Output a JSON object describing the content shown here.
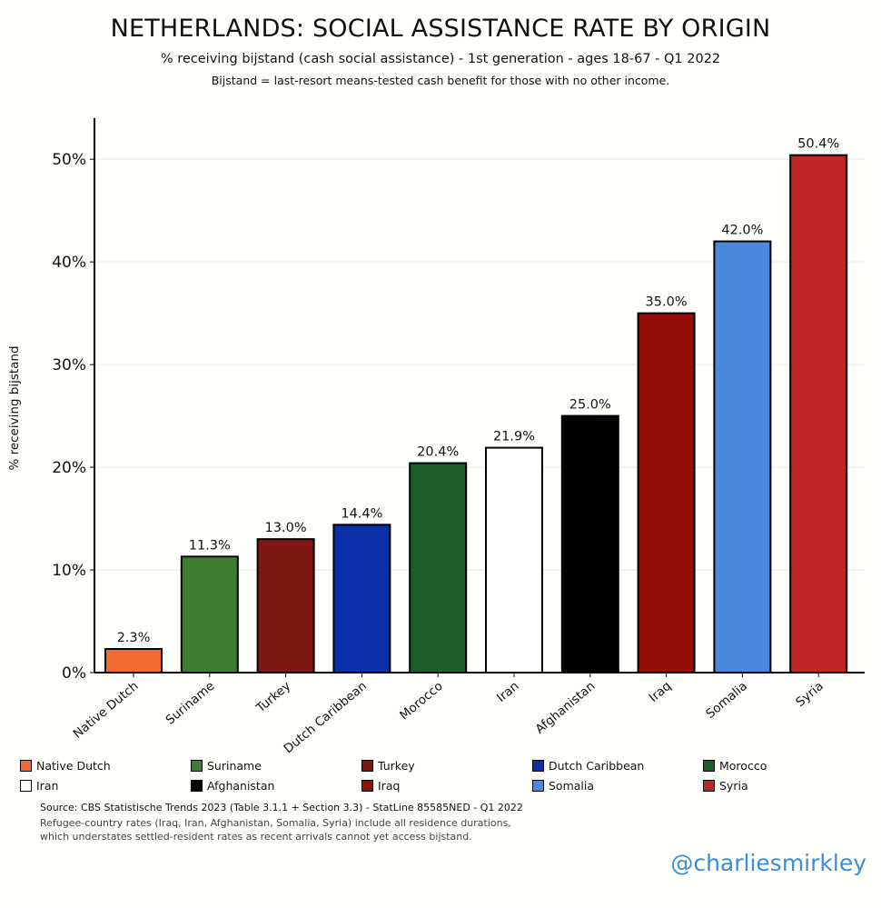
{
  "title": "NETHERLANDS: SOCIAL ASSISTANCE RATE BY ORIGIN",
  "subtitle": "% receiving bijstand (cash social assistance) - 1st generation - ages 18-67 - Q1 2022",
  "note": "Bijstand = last-resort means-tested cash benefit for those with no other income.",
  "source": "Source: CBS Statistische Trends 2023 (Table 3.1.1 + Section 3.3) - StatLine 85585NED - Q1 2022",
  "source_note_line1": "Refugee-country rates (Iraq, Iran, Afghanistan, Somalia, Syria) include all residence durations,",
  "source_note_line2": "which understates settled-resident rates as recent arrivals cannot yet access bijstand.",
  "handle": "@charliesmirkley",
  "chart_data": {
    "type": "bar",
    "ylabel": "% receiving bijstand",
    "ylim": [
      0,
      54
    ],
    "yticks": [
      0,
      10,
      20,
      30,
      40,
      50
    ],
    "ytick_labels": [
      "0%",
      "10%",
      "20%",
      "30%",
      "40%",
      "50%"
    ],
    "grid": true,
    "legend_position": "bottom",
    "categories": [
      "Native Dutch",
      "Suriname",
      "Turkey",
      "Dutch Caribbean",
      "Morocco",
      "Iran",
      "Afghanistan",
      "Iraq",
      "Somalia",
      "Syria"
    ],
    "values": [
      2.3,
      11.3,
      13.0,
      14.4,
      20.4,
      21.9,
      25.0,
      35.0,
      42.0,
      50.4
    ],
    "value_labels": [
      "2.3%",
      "11.3%",
      "13.0%",
      "14.4%",
      "20.4%",
      "21.9%",
      "25.0%",
      "35.0%",
      "42.0%",
      "50.4%"
    ],
    "colors": [
      "#f26a30",
      "#3e7d32",
      "#7e1712",
      "#0a2fa8",
      "#1e5e2b",
      "#ffffff",
      "#000000",
      "#920e06",
      "#4a88e0",
      "#bf2626"
    ]
  }
}
